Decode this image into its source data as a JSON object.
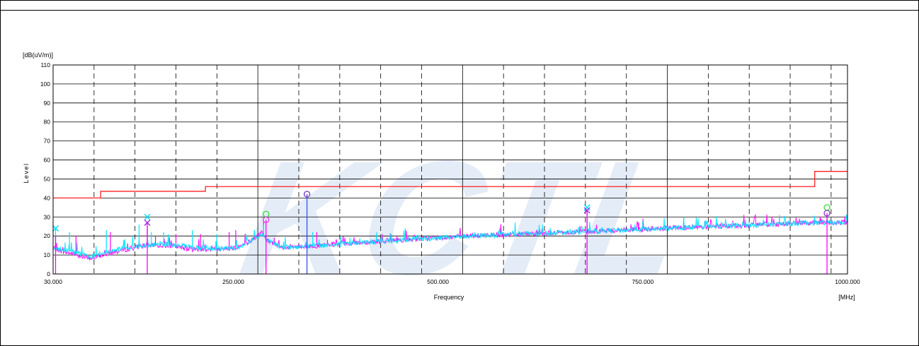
{
  "chart_data": {
    "type": "line",
    "ylabel": "Level",
    "yunit": "[dB(uV/m)]",
    "xlabel": "Frequency",
    "xunit": "[MHz]",
    "xlim": [
      30,
      1000
    ],
    "ylim": [
      0,
      110
    ],
    "grid": true,
    "watermark": "KCTL",
    "x_ticks": [
      "30.000",
      "250.000",
      "500.000",
      "750.000",
      "1000.000"
    ],
    "x_tick_values": [
      30,
      250,
      500,
      750,
      1000
    ],
    "y_ticks": [
      "0",
      "10",
      "20",
      "30",
      "40",
      "50",
      "60",
      "70",
      "80",
      "90",
      "100",
      "110"
    ],
    "y_tick_values": [
      0,
      10,
      20,
      30,
      40,
      50,
      60,
      70,
      80,
      90,
      100,
      110
    ],
    "x_major_grid": [
      30,
      280,
      530,
      780,
      1000
    ],
    "x_minor_grid": [
      80,
      130,
      180,
      230,
      330,
      380,
      430,
      480,
      580,
      630,
      680,
      730,
      830,
      880,
      930,
      980
    ],
    "limit_line": {
      "color": "#ff2020",
      "points": [
        [
          30,
          40
        ],
        [
          88,
          40
        ],
        [
          88,
          43.5
        ],
        [
          216,
          43.5
        ],
        [
          216,
          46
        ],
        [
          960,
          46
        ],
        [
          960,
          54
        ],
        [
          1000,
          54
        ]
      ]
    },
    "series": [
      {
        "color": "#ff00ff",
        "trend": [
          [
            30,
            14
          ],
          [
            40,
            12
          ],
          [
            60,
            10
          ],
          [
            75,
            8
          ],
          [
            90,
            10
          ],
          [
            110,
            12
          ],
          [
            140,
            15
          ],
          [
            170,
            15
          ],
          [
            200,
            13
          ],
          [
            230,
            13
          ],
          [
            255,
            14
          ],
          [
            270,
            17
          ],
          [
            285,
            22
          ],
          [
            290,
            18
          ],
          [
            310,
            14
          ],
          [
            360,
            15
          ],
          [
            420,
            17
          ],
          [
            480,
            18.5
          ],
          [
            540,
            20
          ],
          [
            600,
            21
          ],
          [
            660,
            22
          ],
          [
            720,
            23
          ],
          [
            780,
            24
          ],
          [
            840,
            25
          ],
          [
            900,
            26
          ],
          [
            960,
            27
          ],
          [
            1000,
            27
          ]
        ],
        "spikes": [
          [
            33,
            21
          ],
          [
            58,
            20
          ],
          [
            100,
            22
          ],
          [
            145,
            25
          ],
          [
            155,
            20
          ],
          [
            180,
            21
          ],
          [
            210,
            21
          ],
          [
            245,
            22
          ],
          [
            253,
            23
          ],
          [
            287,
            28
          ],
          [
            300,
            19
          ],
          [
            340,
            20
          ],
          [
            352,
            22
          ],
          [
            365,
            18
          ],
          [
            450,
            20
          ],
          [
            520,
            20
          ],
          [
            600,
            22
          ],
          [
            682,
            32
          ],
          [
            720,
            24
          ],
          [
            745,
            27
          ],
          [
            800,
            27
          ],
          [
            860,
            28
          ],
          [
            917,
            30
          ],
          [
            975,
            30
          ]
        ]
      },
      {
        "color": "#00e5ff",
        "trend": [
          [
            30,
            14
          ],
          [
            40,
            13
          ],
          [
            60,
            11
          ],
          [
            75,
            9
          ],
          [
            90,
            11
          ],
          [
            110,
            13
          ],
          [
            140,
            15
          ],
          [
            170,
            16
          ],
          [
            200,
            14
          ],
          [
            230,
            13
          ],
          [
            255,
            14
          ],
          [
            270,
            17
          ],
          [
            285,
            21
          ],
          [
            290,
            18
          ],
          [
            310,
            14
          ],
          [
            360,
            15
          ],
          [
            420,
            17
          ],
          [
            480,
            18.5
          ],
          [
            540,
            20
          ],
          [
            600,
            21
          ],
          [
            660,
            22
          ],
          [
            720,
            23
          ],
          [
            780,
            24
          ],
          [
            840,
            25
          ],
          [
            900,
            26
          ],
          [
            960,
            27
          ],
          [
            1000,
            27
          ]
        ],
        "spikes": [
          [
            33,
            24
          ],
          [
            50,
            22
          ],
          [
            95,
            23
          ],
          [
            135,
            26
          ],
          [
            150,
            22
          ],
          [
            165,
            22
          ],
          [
            200,
            23
          ],
          [
            230,
            21
          ],
          [
            287,
            26
          ],
          [
            347,
            22
          ],
          [
            425,
            22
          ],
          [
            460,
            24
          ],
          [
            545,
            22
          ],
          [
            580,
            22
          ],
          [
            682,
            33
          ],
          [
            750,
            28
          ],
          [
            800,
            30
          ],
          [
            860,
            27
          ],
          [
            917,
            31
          ],
          [
            975,
            30
          ]
        ]
      }
    ],
    "markers": [
      {
        "x": 33,
        "y": 24,
        "symbol": "x",
        "color": "#00e5ff"
      },
      {
        "x": 145,
        "y": 30,
        "symbol": "x",
        "color": "#00e5ff"
      },
      {
        "x": 145,
        "y": 27,
        "symbol": "x",
        "color": "#a030e0"
      },
      {
        "x": 290,
        "y": 31.5,
        "symbol": "o",
        "color": "#40e040"
      },
      {
        "x": 290,
        "y": 28.5,
        "symbol": "o",
        "color": "#e040e0"
      },
      {
        "x": 340,
        "y": 42,
        "symbol": "o",
        "color": "#8040c0"
      },
      {
        "x": 682,
        "y": 35,
        "symbol": "x",
        "color": "#00e5ff"
      },
      {
        "x": 682,
        "y": 33.5,
        "symbol": "x",
        "color": "#a030e0"
      },
      {
        "x": 975,
        "y": 35,
        "symbol": "o",
        "color": "#40e040"
      },
      {
        "x": 975,
        "y": 32,
        "symbol": "o",
        "color": "#8040c0"
      }
    ],
    "marker_stems": [
      {
        "x": 33,
        "y": 20,
        "color": "#ff00ff"
      },
      {
        "x": 145,
        "y": 27,
        "color": "#ff00ff"
      },
      {
        "x": 290,
        "y": 28.5,
        "color": "#ff00ff"
      },
      {
        "x": 340,
        "y": 42,
        "color": "#3050ff"
      },
      {
        "x": 682,
        "y": 33.5,
        "color": "#ff00ff"
      },
      {
        "x": 975,
        "y": 32,
        "color": "#ff00ff"
      }
    ]
  }
}
